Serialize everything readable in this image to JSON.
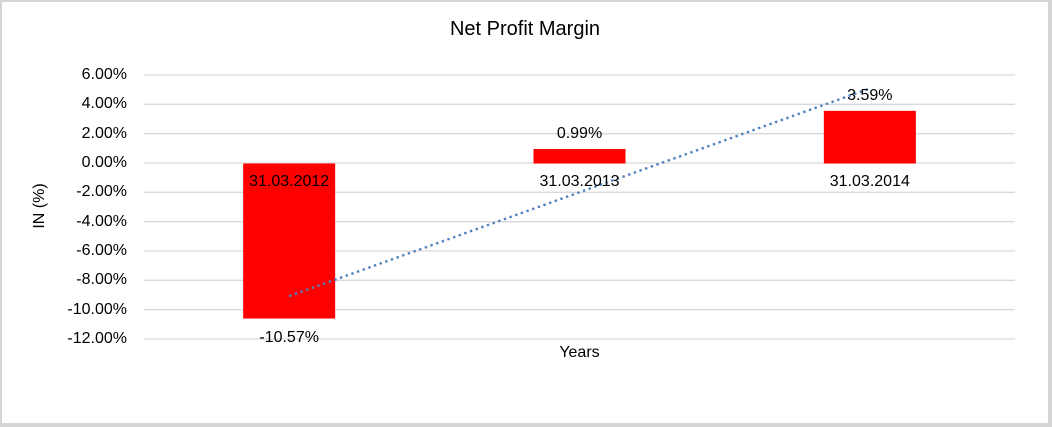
{
  "chart": {
    "title": "Net Profit Margin",
    "y_axis_title": "IN (%)",
    "x_axis_title": "Years"
  },
  "chart_data": {
    "type": "bar",
    "title": "Net Profit Margin",
    "xlabel": "Years",
    "ylabel": "IN (%)",
    "categories": [
      "31.03.2012",
      "31.03.2013",
      "31.03.2014"
    ],
    "values": [
      -10.57,
      0.99,
      3.59
    ],
    "value_labels": [
      "-10.57%",
      "0.99%",
      "3.59%"
    ],
    "y_tick_labels": [
      "6.00%",
      "4.00%",
      "2.00%",
      "0.00%",
      "-2.00%",
      "-4.00%",
      "-6.00%",
      "-8.00%",
      "-10.00%",
      "-12.00%"
    ],
    "y_tick_values": [
      6,
      4,
      2,
      0,
      -2,
      -4,
      -6,
      -8,
      -10,
      -12
    ],
    "ylim": [
      -12,
      6
    ],
    "grid": true,
    "legend": "none",
    "trendline": "linear",
    "colors": {
      "bar": "#FF0000",
      "trendline": "#4F81BD",
      "gridline": "#D9D9D9",
      "text": "#000000",
      "frame_border": "#D5D5D5",
      "background": "#FFFFFF"
    }
  }
}
